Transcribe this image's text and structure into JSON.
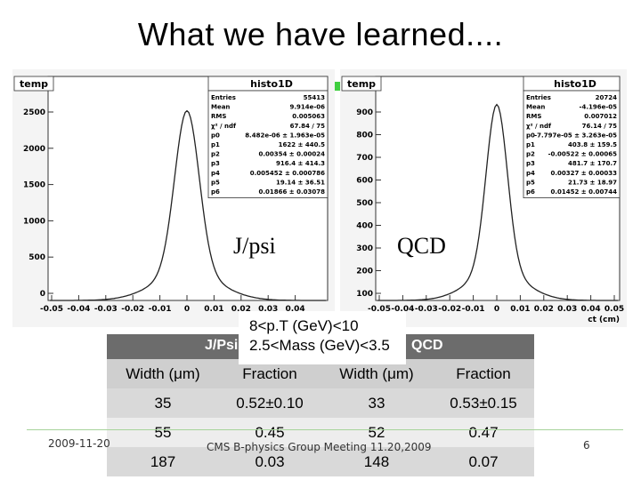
{
  "slide": {
    "title": "What we have learned....",
    "date": "2009-11-20",
    "footer_center": "CMS B-physics Group Meeting 11.20,2009",
    "page_number": "6"
  },
  "selection": {
    "line1": "8<p.T (GeV)<10",
    "line2": "2.5<Mass (GeV)<3.5"
  },
  "panels": [
    {
      "tab": "temp",
      "histo_name": "histo1D",
      "label": "J/psi",
      "stats": [
        [
          "Entries",
          "55413"
        ],
        [
          "Mean",
          "9.914e-06"
        ],
        [
          "RMS",
          "0.005063"
        ],
        [
          "χ² / ndf",
          "67.84 / 75"
        ],
        [
          "p0",
          "8.482e-06 ± 1.963e-05"
        ],
        [
          "p1",
          "1622 ± 440.5"
        ],
        [
          "p2",
          "0.00354 ± 0.00024"
        ],
        [
          "p3",
          "916.4 ± 414.3"
        ],
        [
          "p4",
          "0.005452 ± 0.000786"
        ],
        [
          "p5",
          "19.14 ± 36.51"
        ],
        [
          "p6",
          "0.01866 ± 0.03078"
        ]
      ],
      "y_ticks": [
        "2500",
        "2000",
        "1500",
        "1000",
        "500",
        "0"
      ],
      "x_ticks": [
        "-0.05",
        "-0.04",
        "-0.03",
        "-0.02",
        "-0.01",
        "0",
        "0.01",
        "0.02",
        "0.03",
        "0.04"
      ]
    },
    {
      "tab": "temp",
      "histo_name": "histo1D",
      "label": "QCD",
      "stats": [
        [
          "Entries",
          "20724"
        ],
        [
          "Mean",
          "-4.196e-05"
        ],
        [
          "RMS",
          "0.007012"
        ],
        [
          "χ² / ndf",
          "76.14 / 75"
        ],
        [
          "p0",
          "-7.797e-05 ± 3.263e-05"
        ],
        [
          "p1",
          "403.8 ± 159.5"
        ],
        [
          "p2",
          "-0.00522 ± 0.00065"
        ],
        [
          "p3",
          "481.7 ± 170.7"
        ],
        [
          "p4",
          "0.00327 ± 0.00033"
        ],
        [
          "p5",
          "21.73 ± 18.97"
        ],
        [
          "p6",
          "0.01452 ± 0.00744"
        ]
      ],
      "y_ticks": [
        "900",
        "800",
        "700",
        "600",
        "500",
        "400",
        "300",
        "200",
        "100"
      ],
      "x_ticks": [
        "-0.05",
        "-0.04",
        "-0.03",
        "-0.02",
        "-0.01",
        "0",
        "0.01",
        "0.02",
        "0.03",
        "0.04",
        "0.05"
      ],
      "x_axis_label": "ct (cm)"
    }
  ],
  "table": {
    "group_headers": [
      "J/Psi",
      "QCD"
    ],
    "col_headers": [
      "Width (μm)",
      "Fraction",
      "Width (μm)",
      "Fraction"
    ],
    "rows": [
      [
        "35",
        "0.52±0.10",
        "33",
        "0.53±0.15"
      ],
      [
        "55",
        "0.45",
        "52",
        "0.47"
      ],
      [
        "187",
        "0.03",
        "148",
        "0.07"
      ]
    ]
  }
}
